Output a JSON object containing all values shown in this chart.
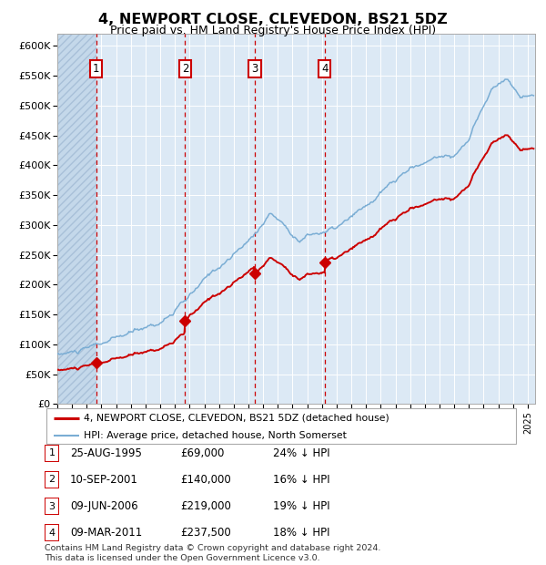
{
  "title": "4, NEWPORT CLOSE, CLEVEDON, BS21 5DZ",
  "subtitle": "Price paid vs. HM Land Registry's House Price Index (HPI)",
  "ylim": [
    0,
    620000
  ],
  "yticks": [
    0,
    50000,
    100000,
    150000,
    200000,
    250000,
    300000,
    350000,
    400000,
    450000,
    500000,
    550000,
    600000
  ],
  "ytick_labels": [
    "£0",
    "£50K",
    "£100K",
    "£150K",
    "£200K",
    "£250K",
    "£300K",
    "£350K",
    "£400K",
    "£450K",
    "£500K",
    "£550K",
    "£600K"
  ],
  "background_color": "#ffffff",
  "plot_bg_color": "#dce9f5",
  "purchases": [
    {
      "label": "1",
      "year": 1995.647,
      "price": 69000
    },
    {
      "label": "2",
      "year": 2001.692,
      "price": 140000
    },
    {
      "label": "3",
      "year": 2006.436,
      "price": 219000
    },
    {
      "label": "4",
      "year": 2011.186,
      "price": 237500
    }
  ],
  "vline_years": [
    1995.647,
    2001.692,
    2006.436,
    2011.186
  ],
  "price_line_color": "#cc0000",
  "hpi_line_color": "#7aadd4",
  "marker_color": "#cc0000",
  "legend_entries": [
    "4, NEWPORT CLOSE, CLEVEDON, BS21 5DZ (detached house)",
    "HPI: Average price, detached house, North Somerset"
  ],
  "table_rows": [
    {
      "num": "1",
      "date": "25-AUG-1995",
      "price": "£69,000",
      "hpi": "24% ↓ HPI"
    },
    {
      "num": "2",
      "date": "10-SEP-2001",
      "price": "£140,000",
      "hpi": "16% ↓ HPI"
    },
    {
      "num": "3",
      "date": "09-JUN-2006",
      "price": "£219,000",
      "hpi": "19% ↓ HPI"
    },
    {
      "num": "4",
      "date": "09-MAR-2011",
      "price": "£237,500",
      "hpi": "18% ↓ HPI"
    }
  ],
  "footnote": "Contains HM Land Registry data © Crown copyright and database right 2024.\nThis data is licensed under the Open Government Licence v3.0.",
  "xmin": 1993.0,
  "xmax": 2025.5,
  "hatch_xmax": 1995.647
}
